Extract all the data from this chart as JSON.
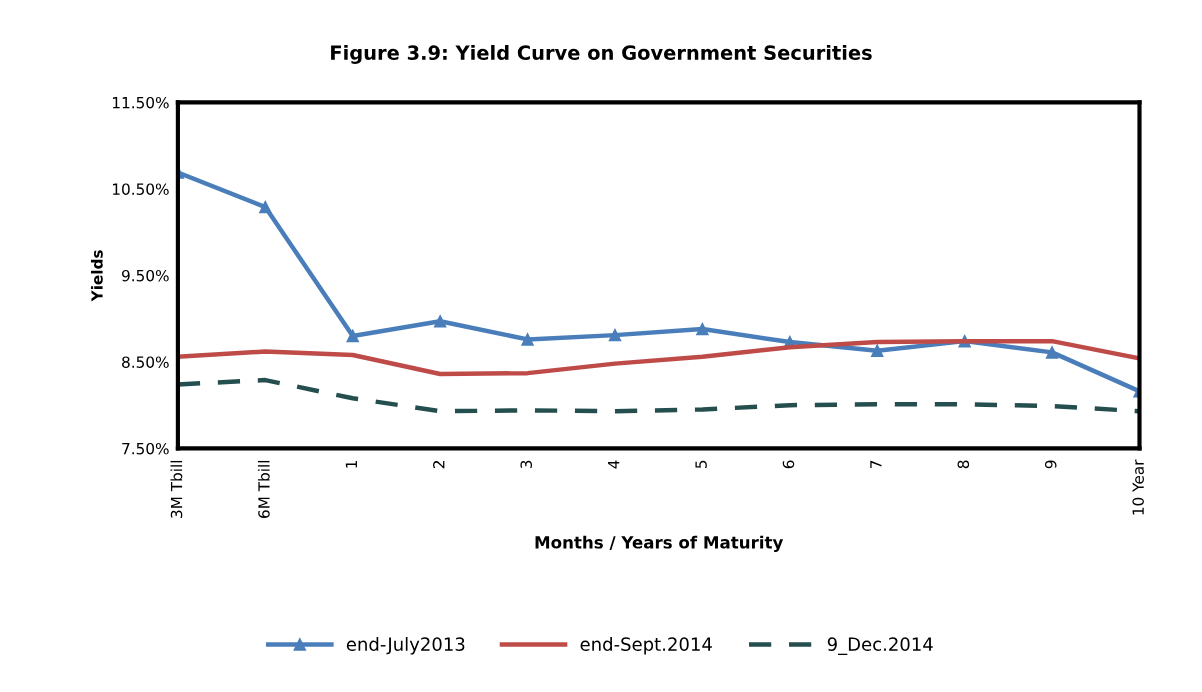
{
  "chart_data": {
    "type": "line",
    "title": "Figure 3.9: Yield Curve on Government Securities",
    "xlabel": "Months / Years of Maturity",
    "ylabel": "Yields",
    "categories": [
      "3M Tbill",
      "6M Tbill",
      "1",
      "2",
      "3",
      "4",
      "5",
      "6",
      "7",
      "8",
      "9",
      "10 Year"
    ],
    "ylim": [
      7.5,
      11.5
    ],
    "yticks": [
      {
        "value": 7.5,
        "label": "7.50%"
      },
      {
        "value": 8.5,
        "label": "8.50%"
      },
      {
        "value": 9.5,
        "label": "9.50%"
      },
      {
        "value": 10.5,
        "label": "10.50%"
      },
      {
        "value": 11.5,
        "label": "11.50%"
      }
    ],
    "grid": false,
    "legend": "bottom",
    "series": [
      {
        "name": "end-July2013",
        "color": "#4a7ebb",
        "marker": "triangle",
        "line_style": "solid",
        "values": [
          10.69,
          10.29,
          8.8,
          8.97,
          8.76,
          8.81,
          8.88,
          8.73,
          8.63,
          8.74,
          8.61,
          8.16
        ]
      },
      {
        "name": "end-Sept.2014",
        "color": "#be4b48",
        "line_style": "solid",
        "values": [
          8.56,
          8.62,
          8.58,
          8.36,
          8.37,
          8.48,
          8.56,
          8.67,
          8.73,
          8.74,
          8.74,
          8.54
        ]
      },
      {
        "name": "9_Dec.2014",
        "color": "#254f4f",
        "line_style": "dashed",
        "values": [
          8.24,
          8.29,
          8.08,
          7.93,
          7.94,
          7.93,
          7.95,
          8.0,
          8.01,
          8.01,
          7.99,
          7.93
        ]
      }
    ]
  }
}
